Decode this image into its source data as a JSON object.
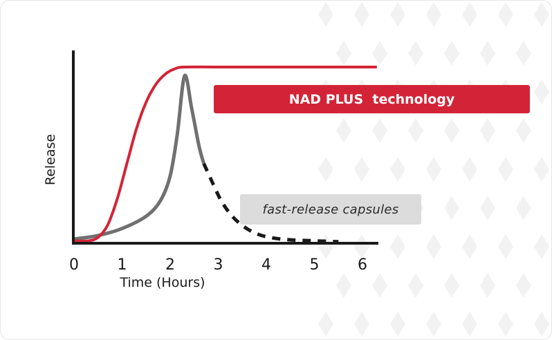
{
  "chart_data": {
    "type": "line",
    "xlabel": "Time (Hours)",
    "ylabel": "Release",
    "xlim": [
      0,
      6.5
    ],
    "ylim": [
      0,
      1.0
    ],
    "x_ticks": [
      "0",
      "1",
      "2",
      "3",
      "4",
      "5",
      "6"
    ],
    "grid": false,
    "series": [
      {
        "name": "NAD PLUS  technology",
        "color": "#d32437",
        "style": "solid",
        "points": [
          [
            0.0,
            0.01
          ],
          [
            0.3,
            0.01
          ],
          [
            0.5,
            0.03
          ],
          [
            0.7,
            0.1
          ],
          [
            0.9,
            0.25
          ],
          [
            1.1,
            0.45
          ],
          [
            1.3,
            0.65
          ],
          [
            1.5,
            0.8
          ],
          [
            1.7,
            0.9
          ],
          [
            1.9,
            0.96
          ],
          [
            2.1,
            0.99
          ],
          [
            2.3,
            1.0
          ],
          [
            3.0,
            1.0
          ],
          [
            4.0,
            1.0
          ],
          [
            5.0,
            1.0
          ],
          [
            6.3,
            1.0
          ]
        ]
      },
      {
        "name": "fast-release capsules",
        "color": "#707070",
        "style": "solid-then-dashed",
        "dash_from_x": 2.7,
        "points": [
          [
            0.0,
            0.02
          ],
          [
            0.5,
            0.04
          ],
          [
            1.0,
            0.08
          ],
          [
            1.5,
            0.15
          ],
          [
            1.8,
            0.24
          ],
          [
            2.0,
            0.38
          ],
          [
            2.15,
            0.62
          ],
          [
            2.3,
            0.95
          ],
          [
            2.45,
            0.76
          ],
          [
            2.6,
            0.55
          ],
          [
            2.7,
            0.45
          ],
          [
            2.9,
            0.33
          ],
          [
            3.1,
            0.22
          ],
          [
            3.4,
            0.12
          ],
          [
            3.8,
            0.05
          ],
          [
            4.3,
            0.02
          ],
          [
            5.0,
            0.01
          ],
          [
            5.5,
            0.005
          ]
        ]
      }
    ],
    "legend": [
      {
        "label": "NAD PLUS  technology",
        "background": "#d32437",
        "text_color": "#ffffff",
        "placement": "upper-right"
      },
      {
        "label": "fast-release capsules",
        "background": "#dcdcdc",
        "text_color": "#2a2a2a",
        "placement": "middle-right"
      }
    ]
  },
  "colors": {
    "axis": "#1a1a1a",
    "pattern": "#f2f2f2"
  }
}
